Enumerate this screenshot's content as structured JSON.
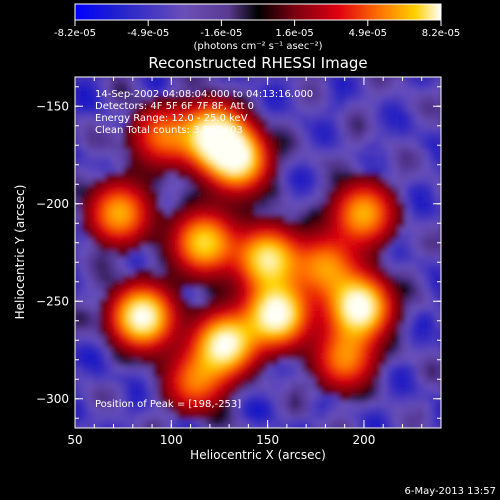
{
  "colorbar": {
    "tick_labels": [
      "-8.2e-05",
      "-4.9e-05",
      "-1.6e-05",
      "1.6e-05",
      "4.9e-05",
      "8.2e-05"
    ],
    "unit_label": "(photons cm⁻² s⁻¹ asec⁻²)",
    "range": [
      -8.2e-05,
      8.2e-05
    ]
  },
  "chart_data": {
    "type": "heatmap",
    "title": "Reconstructed RHESSI Image",
    "xlabel": "Heliocentric X (arcsec)",
    "ylabel": "Heliocentric Y (arcsec)",
    "xlim": [
      50,
      240
    ],
    "ylim": [
      -315,
      -135
    ],
    "x_ticks": [
      50,
      100,
      150,
      200
    ],
    "y_ticks": [
      -150,
      -200,
      -250,
      -300
    ],
    "annotations": [
      "14-Sep-2002 04:08:04.000 to 04:13:16.000",
      "Detectors: 4F 5F 6F 7F 8F, Att 0",
      "Energy Range: 12.0 - 25.0 keV",
      "Clean    Total counts: 3.56E+03"
    ],
    "peak_label": "Position of Peak = [198,-253]",
    "peak_position": [
      198,
      -253
    ],
    "sources": [
      {
        "x": 85,
        "y": -258,
        "value": 1.0
      },
      {
        "x": 128,
        "y": -272,
        "value": 0.95
      },
      {
        "x": 155,
        "y": -257,
        "value": 1.0
      },
      {
        "x": 198,
        "y": -253,
        "value": 1.0
      },
      {
        "x": 150,
        "y": -228,
        "value": 0.85
      },
      {
        "x": 117,
        "y": -220,
        "value": 0.8
      },
      {
        "x": 122,
        "y": -165,
        "value": 0.95
      },
      {
        "x": 135,
        "y": -178,
        "value": 0.85
      },
      {
        "x": 73,
        "y": -205,
        "value": 0.7
      },
      {
        "x": 200,
        "y": -205,
        "value": 0.7
      },
      {
        "x": 190,
        "y": -280,
        "value": 0.6
      },
      {
        "x": 112,
        "y": -292,
        "value": 0.55
      },
      {
        "x": 180,
        "y": -232,
        "value": 0.6
      },
      {
        "x": 95,
        "y": -165,
        "value": 0.55
      }
    ]
  },
  "footer": {
    "date": "6-May-2013 13:57"
  }
}
